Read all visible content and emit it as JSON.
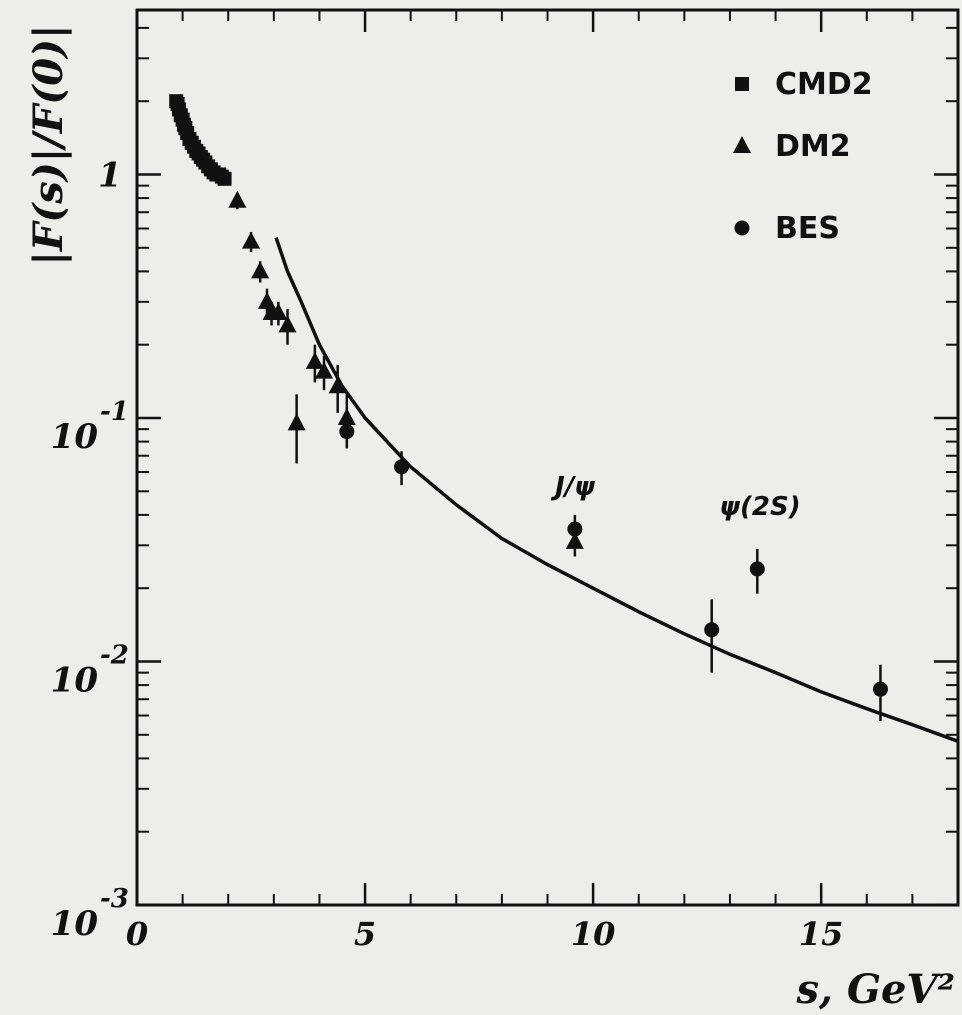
{
  "chart_data": {
    "type": "scatter",
    "xlabel": "s, GeV²",
    "ylabel": "|F(s)|/F(0)|",
    "xlim": [
      0,
      18
    ],
    "ylim_log10": [
      -3,
      0.55
    ],
    "yscale": "log",
    "x_ticks": [
      0,
      5,
      10,
      15
    ],
    "x_tick_labels": [
      "0",
      "5",
      "10",
      "15"
    ],
    "y_ticks": [
      {
        "value": 1,
        "base": "1",
        "exp": ""
      },
      {
        "value": 0.1,
        "base": "10",
        "exp": "-1"
      },
      {
        "value": 0.01,
        "base": "10",
        "exp": "-2"
      },
      {
        "value": 0.001,
        "base": "10",
        "exp": "-3"
      }
    ],
    "legend_position": "top-right",
    "series": [
      {
        "name": "CMD2",
        "marker": "square",
        "points": [
          {
            "x": 0.86,
            "y": 2.0
          },
          {
            "x": 0.89,
            "y": 1.95
          },
          {
            "x": 0.92,
            "y": 1.85
          },
          {
            "x": 0.96,
            "y": 1.75
          },
          {
            "x": 1.0,
            "y": 1.68
          },
          {
            "x": 1.03,
            "y": 1.6
          },
          {
            "x": 1.06,
            "y": 1.55
          },
          {
            "x": 1.1,
            "y": 1.48
          },
          {
            "x": 1.15,
            "y": 1.4
          },
          {
            "x": 1.2,
            "y": 1.35
          },
          {
            "x": 1.25,
            "y": 1.3
          },
          {
            "x": 1.3,
            "y": 1.25
          },
          {
            "x": 1.35,
            "y": 1.22
          },
          {
            "x": 1.4,
            "y": 1.18
          },
          {
            "x": 1.45,
            "y": 1.15
          },
          {
            "x": 1.5,
            "y": 1.12
          },
          {
            "x": 1.56,
            "y": 1.08
          },
          {
            "x": 1.62,
            "y": 1.05
          },
          {
            "x": 1.68,
            "y": 1.02
          },
          {
            "x": 1.74,
            "y": 1.0
          },
          {
            "x": 1.8,
            "y": 1.0
          },
          {
            "x": 1.86,
            "y": 0.98
          },
          {
            "x": 1.92,
            "y": 0.96
          }
        ]
      },
      {
        "name": "DM2",
        "marker": "triangle",
        "points": [
          {
            "x": 2.2,
            "y": 0.78,
            "err": 0.06
          },
          {
            "x": 2.5,
            "y": 0.53,
            "err": 0.05
          },
          {
            "x": 2.7,
            "y": 0.4,
            "err": 0.04
          },
          {
            "x": 2.85,
            "y": 0.3,
            "err": 0.04
          },
          {
            "x": 2.95,
            "y": 0.27,
            "err": 0.03
          },
          {
            "x": 3.1,
            "y": 0.27,
            "err": 0.03
          },
          {
            "x": 3.3,
            "y": 0.24,
            "err": 0.04
          },
          {
            "x": 3.5,
            "y": 0.095,
            "err": 0.03
          },
          {
            "x": 3.9,
            "y": 0.17,
            "err": 0.03
          },
          {
            "x": 4.1,
            "y": 0.155,
            "err": 0.025
          },
          {
            "x": 4.4,
            "y": 0.135,
            "err": 0.03
          },
          {
            "x": 4.6,
            "y": 0.1,
            "err": 0.025
          },
          {
            "x": 9.6,
            "y": 0.031,
            "err": 0.004
          }
        ]
      },
      {
        "name": "BES",
        "marker": "circle",
        "points": [
          {
            "x": 4.6,
            "y": 0.088,
            "err": 0.012
          },
          {
            "x": 5.8,
            "y": 0.063,
            "err": 0.01
          },
          {
            "x": 9.6,
            "y": 0.035,
            "err": 0.005
          },
          {
            "x": 12.6,
            "y": 0.0135,
            "err": 0.0045
          },
          {
            "x": 13.6,
            "y": 0.024,
            "err": 0.005
          },
          {
            "x": 16.3,
            "y": 0.0077,
            "err": 0.002
          }
        ]
      },
      {
        "name": "",
        "type": "line",
        "points": [
          {
            "x": 3.05,
            "y": 0.55
          },
          {
            "x": 3.3,
            "y": 0.4
          },
          {
            "x": 3.6,
            "y": 0.3
          },
          {
            "x": 4.0,
            "y": 0.2
          },
          {
            "x": 4.5,
            "y": 0.135
          },
          {
            "x": 5.0,
            "y": 0.1
          },
          {
            "x": 6.0,
            "y": 0.063
          },
          {
            "x": 7.0,
            "y": 0.044
          },
          {
            "x": 8.0,
            "y": 0.032
          },
          {
            "x": 9.0,
            "y": 0.025
          },
          {
            "x": 10.0,
            "y": 0.02
          },
          {
            "x": 11.0,
            "y": 0.016
          },
          {
            "x": 12.0,
            "y": 0.013
          },
          {
            "x": 13.0,
            "y": 0.0107
          },
          {
            "x": 14.0,
            "y": 0.009
          },
          {
            "x": 15.0,
            "y": 0.0075
          },
          {
            "x": 16.0,
            "y": 0.0064
          },
          {
            "x": 17.0,
            "y": 0.0055
          },
          {
            "x": 18.0,
            "y": 0.0047
          }
        ]
      }
    ],
    "annotations": [
      {
        "text": "J/ψ",
        "x": 9.6,
        "y": 0.058
      },
      {
        "text": "ψ(2S)",
        "x": 13.6,
        "y": 0.04
      }
    ]
  }
}
